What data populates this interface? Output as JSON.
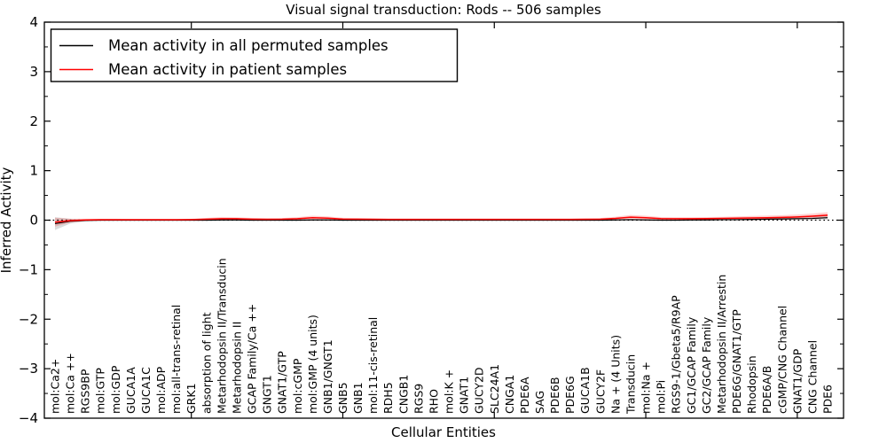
{
  "title": "Visual signal transduction: Rods -- 506 samples",
  "legend": {
    "position": "upper left",
    "entries": [
      {
        "label": "Mean activity in all permuted samples",
        "color": "#000000"
      },
      {
        "label": "Mean activity in patient samples",
        "color": "#ff0000"
      }
    ]
  },
  "chart_data": {
    "type": "line",
    "title": "Visual signal transduction: Rods -- 506 samples",
    "xlabel": "Cellular Entities",
    "ylabel": "Inferred Activity",
    "ylim": [
      -4,
      4
    ],
    "y_major_ticks": [
      -4,
      -3,
      -2,
      -1,
      0,
      1,
      2,
      3,
      4
    ],
    "y_minor_tick_step": 0.5,
    "x_major_tick_indices": [
      9,
      19,
      29,
      39,
      49
    ],
    "grid": false,
    "zero_line": {
      "y": 0,
      "style": "dotted",
      "color": "#000000"
    },
    "categories": [
      "mol:Ca2+",
      "mol:Ca ++",
      "RGS9BP",
      "mol:GTP",
      "mol:GDP",
      "GUCA1A",
      "GUCA1C",
      "mol:ADP",
      "mol:all-trans-retinal",
      "GRK1",
      "absorption of light",
      "Metarhodopsin II/Transducin",
      "Metarhodopsin II",
      "GCAP Family/Ca ++",
      "GNGT1",
      "GNAT1/GTP",
      "mol:cGMP",
      "mol:GMP (4 units)",
      "GNB1/GNGT1",
      "GNB5",
      "GNB1",
      "mol:11-cis-retinal",
      "RDH5",
      "CNGB1",
      "RGS9",
      "RHO",
      "mol:K +",
      "GNAT1",
      "GUCY2D",
      "SLC24A1",
      "CNGA1",
      "PDE6A",
      "SAG",
      "PDE6B",
      "PDE6G",
      "GUCA1B",
      "GUCY2F",
      "Na + (4 Units)",
      "Transducin",
      "mol:Na +",
      "mol:Pi",
      "RGS9-1/Gbeta5/R9AP",
      "GC1/GCAP Family",
      "GC2/GCAP Family",
      "Metarhodopsin II/Arrestin",
      "PDE6G/GNAT1/GTP",
      "Rhodopsin",
      "PDE6A/B",
      "cGMP/CNG Channel",
      "GNAT1/GDP",
      "CNG Channel",
      "PDE6"
    ],
    "series": [
      {
        "name": "Mean activity in all permuted samples",
        "color": "#000000",
        "band_color": "#000000",
        "band_opacity": 0.14,
        "values": [
          -0.07,
          -0.02,
          -0.005,
          0,
          0,
          0,
          0,
          0,
          0,
          0,
          0,
          0.005,
          0.005,
          0,
          0,
          0,
          0,
          0.005,
          0.005,
          0,
          0,
          0,
          0,
          0,
          0,
          0,
          0,
          0,
          0,
          0,
          0,
          0,
          0,
          0,
          0,
          0,
          0,
          0.005,
          0.01,
          0.005,
          0,
          0,
          0.005,
          0.005,
          0.01,
          0.01,
          0.015,
          0.02,
          0.025,
          0.03,
          0.035,
          0.05
        ],
        "band": [
          0.13,
          0.05,
          0.02,
          0.012,
          0.01,
          0.01,
          0.01,
          0.01,
          0.01,
          0.01,
          0.012,
          0.015,
          0.015,
          0.012,
          0.01,
          0.01,
          0.012,
          0.015,
          0.012,
          0.01,
          0.01,
          0.01,
          0.01,
          0.01,
          0.01,
          0.01,
          0.01,
          0.01,
          0.01,
          0.01,
          0.01,
          0.01,
          0.01,
          0.01,
          0.01,
          0.01,
          0.01,
          0.012,
          0.015,
          0.012,
          0.01,
          0.01,
          0.012,
          0.012,
          0.015,
          0.015,
          0.02,
          0.02,
          0.025,
          0.03,
          0.035,
          0.045
        ]
      },
      {
        "name": "Mean activity in patient samples",
        "color": "#ff0000",
        "band_color": "#ff0000",
        "band_opacity": 0.18,
        "values": [
          -0.04,
          -0.01,
          0.005,
          0.01,
          0.01,
          0.01,
          0.01,
          0.01,
          0.01,
          0.012,
          0.02,
          0.03,
          0.028,
          0.02,
          0.018,
          0.02,
          0.03,
          0.05,
          0.04,
          0.022,
          0.02,
          0.018,
          0.015,
          0.015,
          0.015,
          0.015,
          0.015,
          0.015,
          0.015,
          0.015,
          0.015,
          0.015,
          0.015,
          0.015,
          0.015,
          0.018,
          0.02,
          0.035,
          0.06,
          0.05,
          0.032,
          0.03,
          0.03,
          0.032,
          0.035,
          0.04,
          0.045,
          0.05,
          0.055,
          0.065,
          0.08,
          0.1
        ],
        "band": [
          0.09,
          0.04,
          0.025,
          0.02,
          0.018,
          0.015,
          0.015,
          0.015,
          0.015,
          0.018,
          0.025,
          0.035,
          0.03,
          0.025,
          0.02,
          0.022,
          0.03,
          0.04,
          0.035,
          0.025,
          0.02,
          0.018,
          0.015,
          0.015,
          0.015,
          0.015,
          0.015,
          0.015,
          0.015,
          0.015,
          0.015,
          0.015,
          0.015,
          0.015,
          0.015,
          0.018,
          0.022,
          0.035,
          0.045,
          0.04,
          0.03,
          0.028,
          0.028,
          0.03,
          0.032,
          0.035,
          0.04,
          0.042,
          0.045,
          0.05,
          0.055,
          0.06
        ]
      }
    ]
  }
}
